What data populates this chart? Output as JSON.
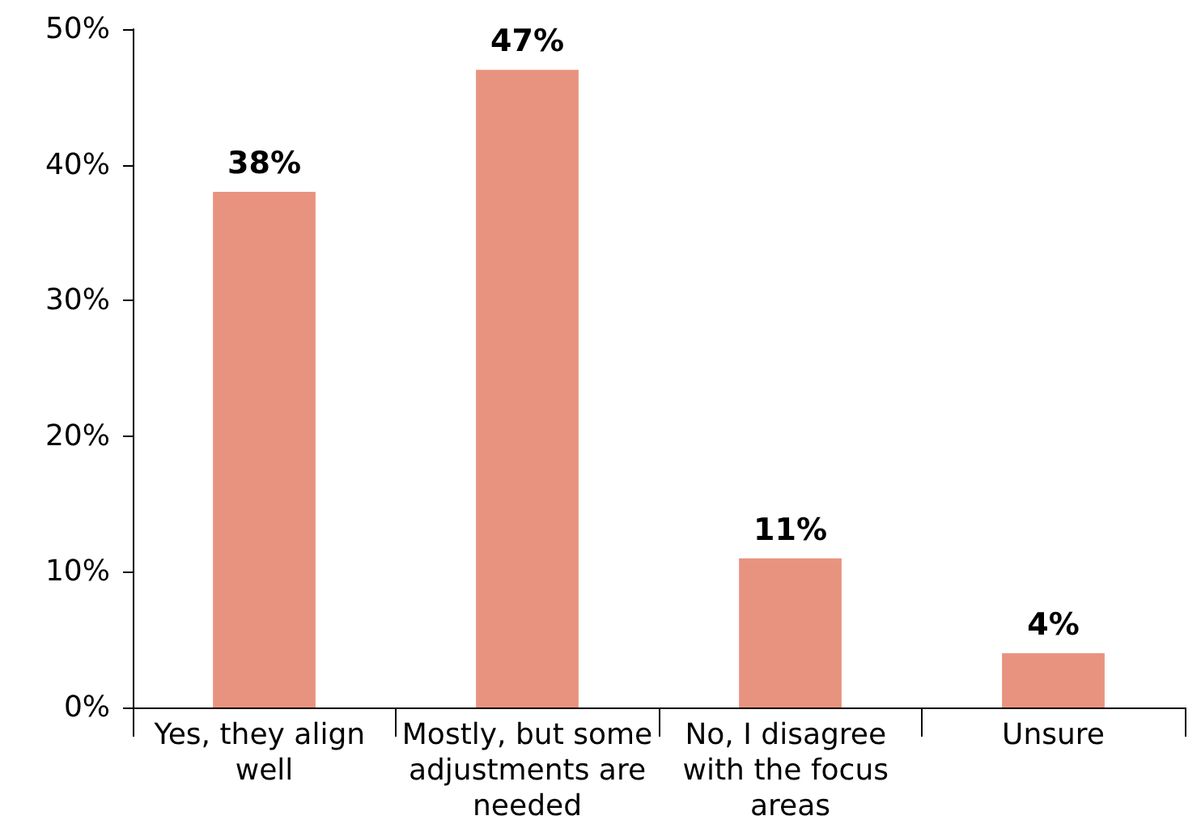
{
  "chart_data": {
    "type": "bar",
    "categories": [
      "Yes, they align well",
      "Mostly, but some adjustments are needed",
      "No, I disagree with the focus areas",
      "Unsure"
    ],
    "values": [
      38,
      47,
      11,
      4
    ],
    "color": "#e8937f",
    "value_labels": [
      "38%",
      "47%",
      "11%",
      "4%"
    ],
    "ylim": [
      0,
      50
    ],
    "yticks": [
      {
        "value": 0,
        "label": "0%"
      },
      {
        "value": 10,
        "label": "10%"
      },
      {
        "value": 20,
        "label": "20%"
      },
      {
        "value": 30,
        "label": "30%"
      },
      {
        "value": 40,
        "label": "40%"
      },
      {
        "value": 50,
        "label": "50%"
      }
    ],
    "grid": false
  }
}
